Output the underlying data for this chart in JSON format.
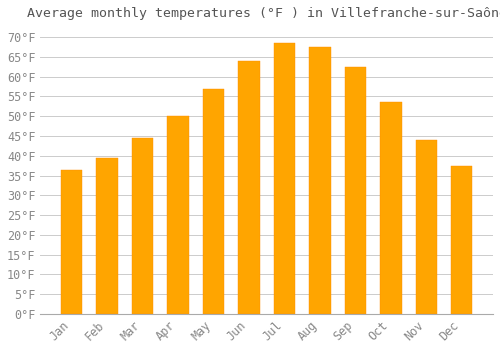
{
  "title": "Average monthly temperatures (°F ) in Villefranche-sur-Saône",
  "months": [
    "Jan",
    "Feb",
    "Mar",
    "Apr",
    "May",
    "Jun",
    "Jul",
    "Aug",
    "Sep",
    "Oct",
    "Nov",
    "Dec"
  ],
  "values": [
    36.5,
    39.5,
    44.5,
    50.0,
    57.0,
    64.0,
    68.5,
    67.5,
    62.5,
    53.5,
    44.0,
    37.5
  ],
  "bar_color": "#FFA500",
  "bar_edge_color": "#FF8C00",
  "background_color": "#FFFFFF",
  "grid_color": "#CCCCCC",
  "ylim": [
    0,
    73
  ],
  "yticks": [
    0,
    5,
    10,
    15,
    20,
    25,
    30,
    35,
    40,
    45,
    50,
    55,
    60,
    65,
    70
  ],
  "title_fontsize": 9.5,
  "tick_fontsize": 8.5,
  "tick_color": "#888888",
  "title_color": "#555555",
  "font_family": "monospace"
}
